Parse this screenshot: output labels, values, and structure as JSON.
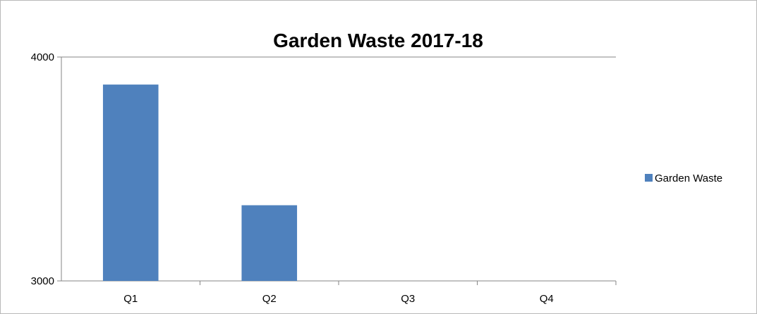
{
  "chart_data": {
    "type": "bar",
    "title": "Garden Waste 2017-18",
    "xlabel": "",
    "ylabel": "",
    "categories": [
      "Q1",
      "Q2",
      "Q3",
      "Q4"
    ],
    "series": [
      {
        "name": "Garden Waste",
        "values": [
          3877,
          3338,
          null,
          null
        ],
        "color": "#4f81bd"
      }
    ],
    "ylim": [
      3000,
      4000
    ],
    "yticks": [
      "3000",
      "4000"
    ],
    "grid": false,
    "legend": "right"
  }
}
